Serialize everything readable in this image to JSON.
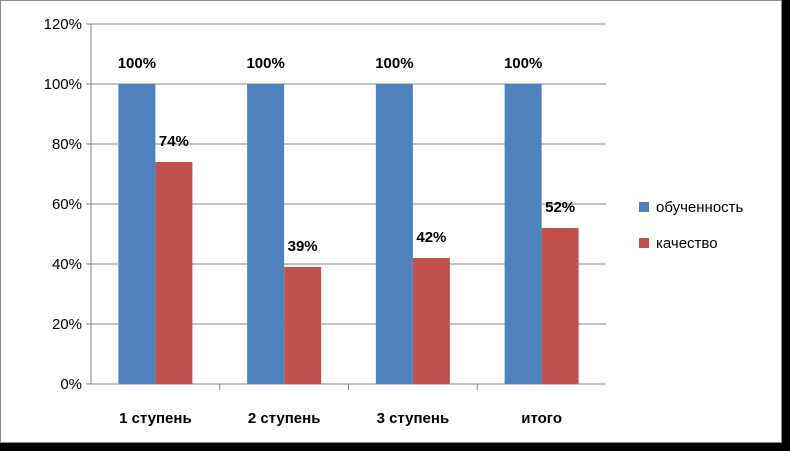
{
  "chart_data": {
    "type": "bar",
    "categories": [
      "1 ступень",
      "2 ступень",
      "3 ступень",
      "итого"
    ],
    "series": [
      {
        "name": "обученность",
        "values": [
          100,
          100,
          100,
          100
        ],
        "labels": [
          "100%",
          "100%",
          "100%",
          "100%"
        ],
        "color": "#4F81BD"
      },
      {
        "name": "качество",
        "values": [
          74,
          39,
          42,
          52
        ],
        "labels": [
          "74%",
          "39%",
          "42%",
          "52%"
        ],
        "color": "#C0504D"
      }
    ],
    "ylim": [
      0,
      120
    ],
    "yticks": [
      0,
      20,
      40,
      60,
      80,
      100,
      120
    ],
    "ytick_labels": [
      "0%",
      "20%",
      "40%",
      "60%",
      "80%",
      "100%",
      "120%"
    ],
    "grid": true,
    "legend_position": "right",
    "title": "",
    "xlabel": "",
    "ylabel": ""
  }
}
